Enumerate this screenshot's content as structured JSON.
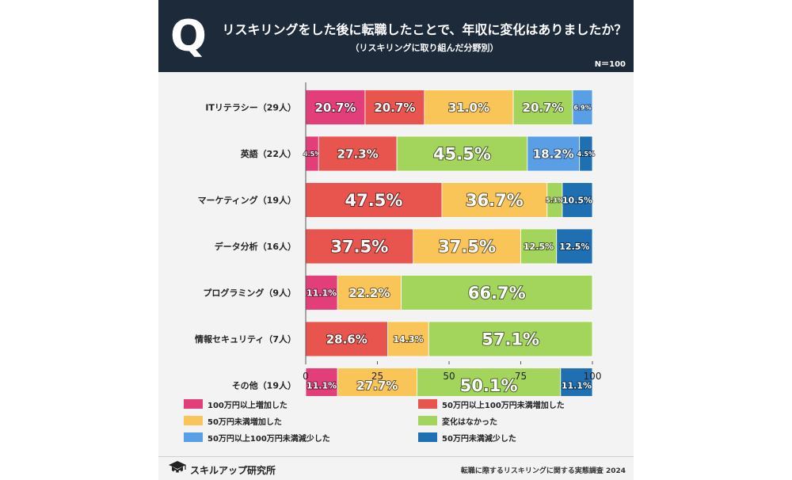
{
  "header": {
    "q_letter": "Q",
    "title": "リスキリングをした後に転職したことで、年収に変化はありましたか？",
    "subtitle": "（リスキリングに取り組んだ分野別）",
    "n_label": "N＝100"
  },
  "colors": {
    "header_bg": "#1d2a3a",
    "series": [
      "#e23e7a",
      "#e8554e",
      "#f9c458",
      "#a3d45c",
      "#5a9fe6",
      "#1f6fb3"
    ]
  },
  "chart_data": {
    "type": "bar",
    "orientation": "horizontal",
    "stacked": true,
    "categories": [
      "ITリテラシー（29人）",
      "英語（22人）",
      "マーケティング（19人）",
      "データ分析（16人）",
      "プログラミング（9人）",
      "情報セキュリティ（7人）",
      "その他（19人）"
    ],
    "series": [
      {
        "name": "100万円以上増加した",
        "values": [
          20.7,
          4.5,
          0,
          0,
          11.1,
          0,
          11.1
        ]
      },
      {
        "name": "50万円以上100万円未満増加した",
        "values": [
          20.7,
          27.3,
          47.5,
          37.5,
          0,
          28.6,
          0
        ]
      },
      {
        "name": "50万円未満増加した",
        "values": [
          31.0,
          0,
          36.7,
          37.5,
          22.2,
          14.3,
          27.7
        ]
      },
      {
        "name": "変化はなかった",
        "values": [
          20.7,
          45.5,
          5.3,
          12.5,
          66.7,
          57.1,
          50.1
        ]
      },
      {
        "name": "50万円以上100万円未満減少した",
        "values": [
          6.9,
          18.2,
          0,
          0,
          0,
          0,
          0
        ]
      },
      {
        "name": "50万円未満減少した",
        "values": [
          0,
          4.5,
          10.5,
          12.5,
          0,
          0,
          11.1
        ]
      }
    ],
    "xlim": [
      0,
      100
    ],
    "xticks": [
      0,
      25,
      50,
      75,
      100
    ],
    "legend_position": "bottom"
  },
  "footer": {
    "brand": "スキルアップ研究所",
    "source": "転職に際するリスキリングに関する実態調査 2024"
  }
}
